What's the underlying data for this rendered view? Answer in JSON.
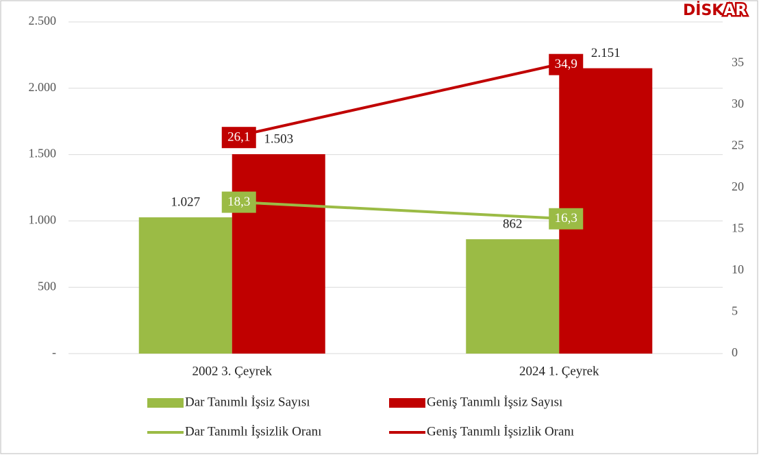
{
  "chart_data": {
    "type": "bar-line",
    "logo": [
      "DİSK",
      "AR"
    ],
    "categories": [
      "2002 3. Çeyrek",
      "2024 1. Çeyrek"
    ],
    "series": [
      {
        "name": "Dar Tanımlı İşsiz Sayısı",
        "type": "bar",
        "color": "#9bbb45",
        "values": [
          1027,
          862
        ],
        "value_labels": [
          "1.027",
          "862"
        ]
      },
      {
        "name": "Geniş Tanımlı İşsiz Sayısı",
        "type": "bar",
        "color": "#c00000",
        "values": [
          1503,
          2151
        ],
        "value_labels": [
          "1.503",
          "2.151"
        ]
      },
      {
        "name": "Dar Tanımlı İşsizlik Oranı",
        "type": "line",
        "axis": "y2",
        "color": "#9bbb45",
        "values": [
          18.3,
          16.3
        ],
        "value_labels": [
          "18,3",
          "16,3"
        ]
      },
      {
        "name": "Geniş Tanımlı İşsizlik Oranı",
        "type": "line",
        "axis": "y2",
        "color": "#c00000",
        "values": [
          26.1,
          34.9
        ],
        "value_labels": [
          "26,1",
          "34,9"
        ]
      }
    ],
    "ylim": [
      0,
      2500
    ],
    "yticks": [
      {
        "value": 0,
        "label": "-"
      },
      500,
      {
        "value": 1000,
        "label": "1.000"
      },
      {
        "value": 1500,
        "label": "1.500"
      },
      {
        "value": 2000,
        "label": "2.000"
      },
      {
        "value": 2500,
        "label": "2.500"
      }
    ],
    "y2lim": [
      0,
      40
    ],
    "y2ticks": [
      0,
      5,
      10,
      15,
      20,
      25,
      30,
      35
    ],
    "grid": true,
    "legend": "bottom"
  }
}
